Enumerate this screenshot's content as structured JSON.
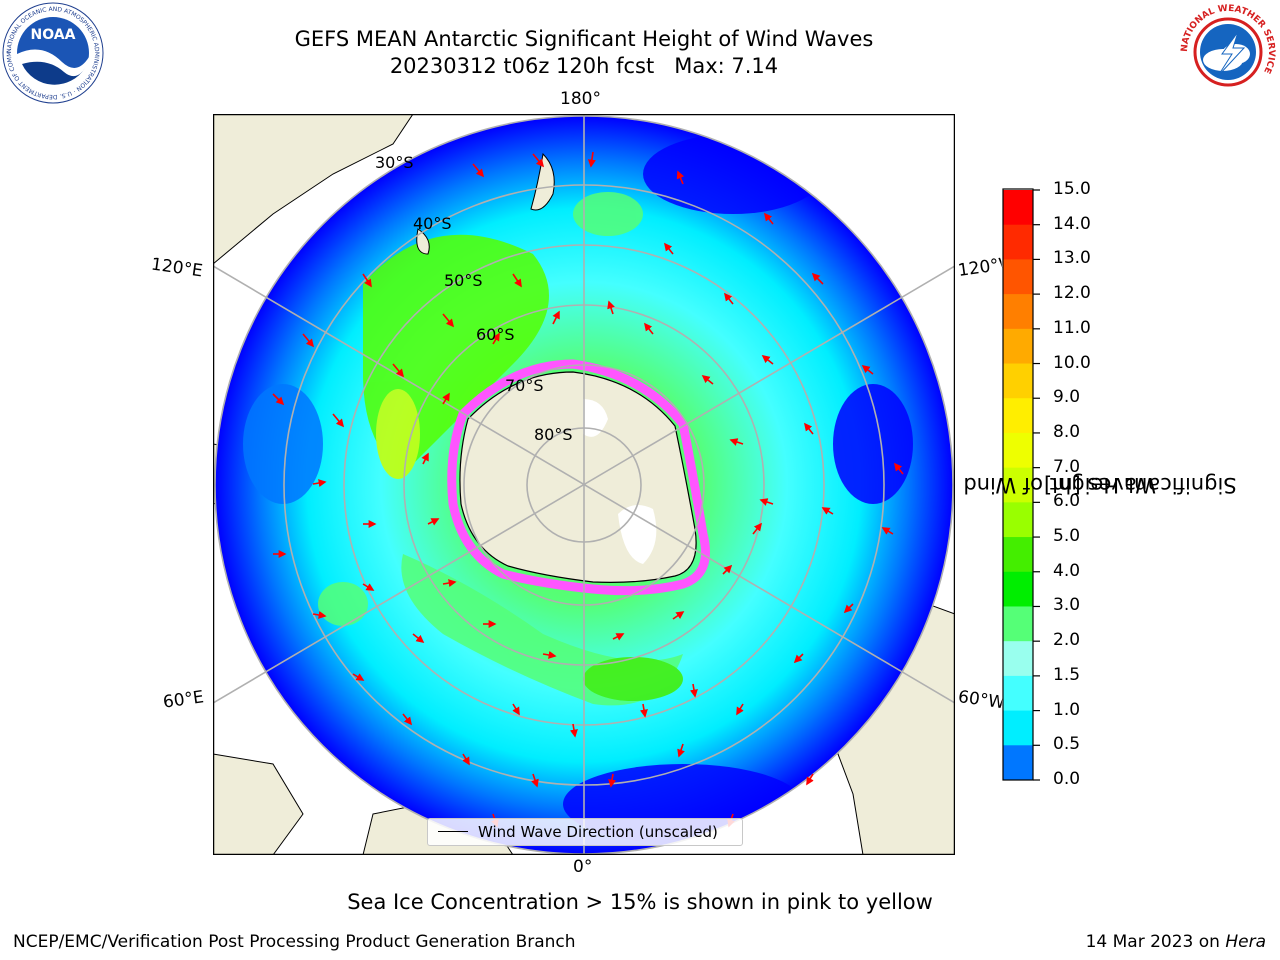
{
  "header": {
    "title_line1": "GEFS MEAN Antarctic Significant Height of Wind Waves",
    "title_line2": "20230312 t06z 120h fcst   Max: 7.14"
  },
  "logos": {
    "noaa": {
      "text": "NOAA",
      "ring_text": "NATIONAL OCEANIC AND ATMOSPHERIC ADMINISTRATION · U.S. DEPARTMENT OF COMMERCE"
    },
    "nws": {
      "ring_text": "NATIONAL WEATHER SERVICE"
    }
  },
  "map": {
    "projection": "south-polar-stereographic",
    "longitude_labels": {
      "top": "180°",
      "bottom": "0°",
      "left_upper": "120°E",
      "left_lower": "60°E",
      "right_upper": "120°W",
      "right_lower": "60°W"
    },
    "latitude_labels": [
      "30°S",
      "40°S",
      "50°S",
      "60°S",
      "70°S",
      "80°S"
    ],
    "legend_label": "Wind Wave Direction (unscaled)",
    "colors": {
      "land": "#efedd9",
      "coast": "#000000",
      "grid": "#b0b0b0",
      "arrows": "#ff0000",
      "sea_ice": "#ff55ff"
    }
  },
  "colorbar": {
    "title_line1": "Significant Height of Wind",
    "title_line2": "Waves [m]",
    "ticks": [
      "15.0",
      "14.0",
      "13.0",
      "12.0",
      "11.0",
      "10.0",
      "9.0",
      "8.0",
      "7.0",
      "6.0",
      "5.0",
      "4.0",
      "3.0",
      "2.0",
      "1.5",
      "1.0",
      "0.5",
      "0.0"
    ],
    "colors": [
      "#ff0000",
      "#ff2a00",
      "#ff5500",
      "#ff7f00",
      "#ffaa00",
      "#ffd000",
      "#ffee00",
      "#eeff00",
      "#ccff00",
      "#99ff00",
      "#44ee00",
      "#00ee00",
      "#55ff77",
      "#99ffee",
      "#44ffff",
      "#00eeff",
      "#0077ff",
      "#0000ff"
    ]
  },
  "footer": {
    "note": "Sea Ice Concentration > 15% is shown in pink to yellow",
    "left": "NCEP/EMC/Verification Post Processing Product Generation Branch",
    "right_date": "14 Mar 2023 on ",
    "right_machine": "Hera"
  }
}
